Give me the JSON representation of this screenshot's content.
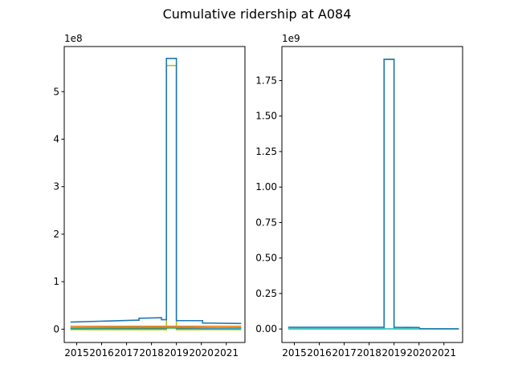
{
  "figure": {
    "suptitle": "Cumulative ridership at A084"
  },
  "chart_data": [
    {
      "type": "line",
      "xlim": [
        2014.5,
        2021.75
      ],
      "ylim": [
        -28000000.0,
        595000000.0
      ],
      "offset_label": "1e8",
      "yticks": [
        {
          "v": 0,
          "label": "0"
        },
        {
          "v": 100000000.0,
          "label": "1"
        },
        {
          "v": 200000000.0,
          "label": "2"
        },
        {
          "v": 300000000.0,
          "label": "3"
        },
        {
          "v": 400000000.0,
          "label": "4"
        },
        {
          "v": 500000000.0,
          "label": "5"
        }
      ],
      "xticks": [
        {
          "v": 2015,
          "label": "2015"
        },
        {
          "v": 2016,
          "label": "2016"
        },
        {
          "v": 2017,
          "label": "2017"
        },
        {
          "v": 2018,
          "label": "2018"
        },
        {
          "v": 2019,
          "label": "2019"
        },
        {
          "v": 2020,
          "label": "2020"
        },
        {
          "v": 2021,
          "label": "2021"
        }
      ],
      "series": [
        {
          "color": "#bcbd22",
          "x": [
            2014.75,
            2018.6,
            2018.6,
            2019.0,
            2019.0,
            2021.6
          ],
          "y": [
            -1000000.0,
            -1000000.0,
            555000000.0,
            555000000.0,
            -1000000.0,
            -1000000.0
          ]
        },
        {
          "color": "#9467bd",
          "x": [
            2014.75,
            2018.6,
            2018.6,
            2019.0,
            2019.0,
            2021.6
          ],
          "y": [
            1000000.0,
            1000000.0,
            4000000.0,
            4000000.0,
            1000000.0,
            1000000.0
          ]
        },
        {
          "color": "#2ca02c",
          "x": [
            2014.75,
            2021.6
          ],
          "y": [
            2000000.0,
            3000000.0
          ]
        },
        {
          "color": "#17becf",
          "x": [
            2014.75,
            2019.0,
            2021.6
          ],
          "y": [
            3000000.0,
            4000000.0,
            2000000.0
          ]
        },
        {
          "color": "#ff7f0e",
          "x": [
            2014.75,
            2021.6
          ],
          "y": [
            6000000.0,
            6000000.0
          ]
        },
        {
          "color": "#1f77b4",
          "x": [
            2014.75,
            2017.4,
            2017.5,
            2017.5,
            2018.3,
            2018.4,
            2018.4,
            2018.6,
            2018.6,
            2019.0,
            2019.0,
            2020.0,
            2020.05,
            2020.05,
            2021.6
          ],
          "y": [
            15000000.0,
            19000000.0,
            19000000.0,
            23000000.0,
            24000000.0,
            24000000.0,
            20000000.0,
            20000000.0,
            570000000.0,
            570000000.0,
            18000000.0,
            18000000.0,
            18000000.0,
            13000000.0,
            12000000.0
          ]
        }
      ]
    },
    {
      "type": "line",
      "xlim": [
        2014.5,
        2021.75
      ],
      "ylim": [
        -95000000.0,
        1990000000.0
      ],
      "offset_label": "1e9",
      "yticks": [
        {
          "v": 0,
          "label": "0.00"
        },
        {
          "v": 250000000.0,
          "label": "0.25"
        },
        {
          "v": 500000000.0,
          "label": "0.50"
        },
        {
          "v": 750000000.0,
          "label": "0.75"
        },
        {
          "v": 1000000000.0,
          "label": "1.00"
        },
        {
          "v": 1250000000.0,
          "label": "1.25"
        },
        {
          "v": 1500000000.0,
          "label": "1.50"
        },
        {
          "v": 1750000000.0,
          "label": "1.75"
        }
      ],
      "xticks": [
        {
          "v": 2015,
          "label": "2015"
        },
        {
          "v": 2016,
          "label": "2016"
        },
        {
          "v": 2017,
          "label": "2017"
        },
        {
          "v": 2018,
          "label": "2018"
        },
        {
          "v": 2019,
          "label": "2019"
        },
        {
          "v": 2020,
          "label": "2020"
        },
        {
          "v": 2021,
          "label": "2021"
        }
      ],
      "series": [
        {
          "color": "#bcbd22",
          "x": [
            2014.75,
            2018.6,
            2018.6,
            2019.0,
            2019.0,
            2021.6
          ],
          "y": [
            1000000.0,
            1000000.0,
            1900000000.0,
            1900000000.0,
            1000000.0,
            1000000.0
          ]
        },
        {
          "color": "#17becf",
          "x": [
            2014.75,
            2021.6
          ],
          "y": [
            1000000.0,
            1000000.0
          ]
        },
        {
          "color": "#1f77b4",
          "x": [
            2014.75,
            2018.6,
            2018.6,
            2019.0,
            2019.0,
            2020.0,
            2020.05,
            2021.6
          ],
          "y": [
            12000000.0,
            12000000.0,
            1900000000.0,
            1900000000.0,
            12000000.0,
            11000000.0,
            2000000.0,
            1000000.0
          ]
        }
      ]
    }
  ]
}
